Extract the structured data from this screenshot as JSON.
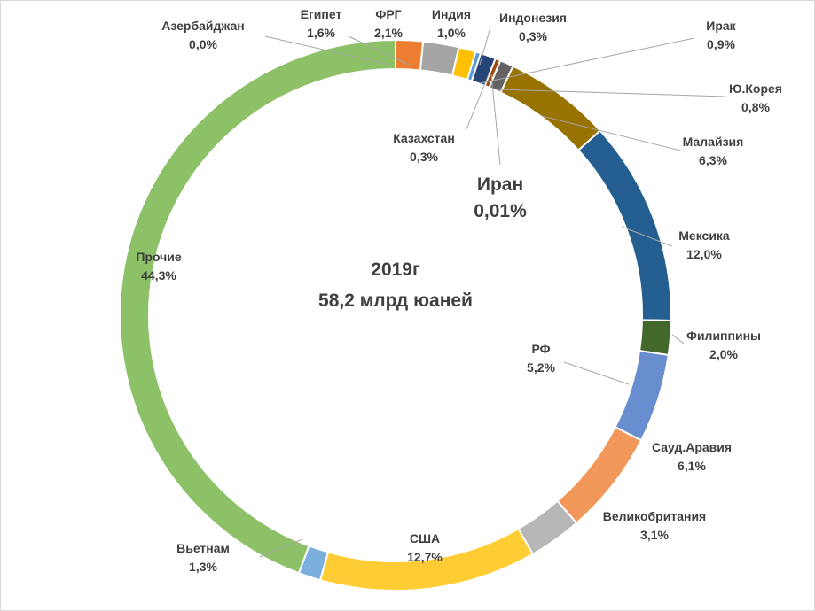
{
  "chart_data": {
    "type": "pie",
    "variant": "doughnut",
    "center_title": "2019г",
    "center_subtitle": "58,2 млрд юаней",
    "slices": [
      {
        "name": "Азербайджан",
        "value": 0.0,
        "label": "0,0%",
        "color": "#5b9bd5"
      },
      {
        "name": "Египет",
        "value": 1.6,
        "label": "1,6%",
        "color": "#ed7d31"
      },
      {
        "name": "ФРГ",
        "value": 2.1,
        "label": "2,1%",
        "color": "#a5a5a5"
      },
      {
        "name": "Индия",
        "value": 1.0,
        "label": "1,0%",
        "color": "#ffc000"
      },
      {
        "name": "Индонезия",
        "value": 0.3,
        "label": "0,3%",
        "color": "#5b9bd5"
      },
      {
        "name": "Ирак",
        "value": 0.9,
        "label": "0,9%",
        "color": "#264478"
      },
      {
        "name": "Казахстан",
        "value": 0.3,
        "label": "0,3%",
        "color": "#9e480e"
      },
      {
        "name": "Иран",
        "value": 0.01,
        "label": "0,01%",
        "color": "#636363"
      },
      {
        "name": "Ю.Корея",
        "value": 0.8,
        "label": "0,8%",
        "color": "#636363"
      },
      {
        "name": "Малайзия",
        "value": 6.3,
        "label": "6,3%",
        "color": "#997300"
      },
      {
        "name": "Мексика",
        "value": 12.0,
        "label": "12,0%",
        "color": "#255e91"
      },
      {
        "name": "Филиппины",
        "value": 2.0,
        "label": "2,0%",
        "color": "#43682b"
      },
      {
        "name": "РФ",
        "value": 5.2,
        "label": "5,2%",
        "color": "#698ed0"
      },
      {
        "name": "Сауд.Аравия",
        "value": 6.1,
        "label": "6,1%",
        "color": "#f1975a"
      },
      {
        "name": "Великобритания",
        "value": 3.1,
        "label": "3,1%",
        "color": "#b7b7b7"
      },
      {
        "name": "США",
        "value": 12.7,
        "label": "12,7%",
        "color": "#ffcd33"
      },
      {
        "name": "Вьетнам",
        "value": 1.3,
        "label": "1,3%",
        "color": "#7cafdd"
      },
      {
        "name": "Прочие",
        "value": 44.3,
        "label": "44,3%",
        "color": "#8cc168"
      }
    ]
  }
}
